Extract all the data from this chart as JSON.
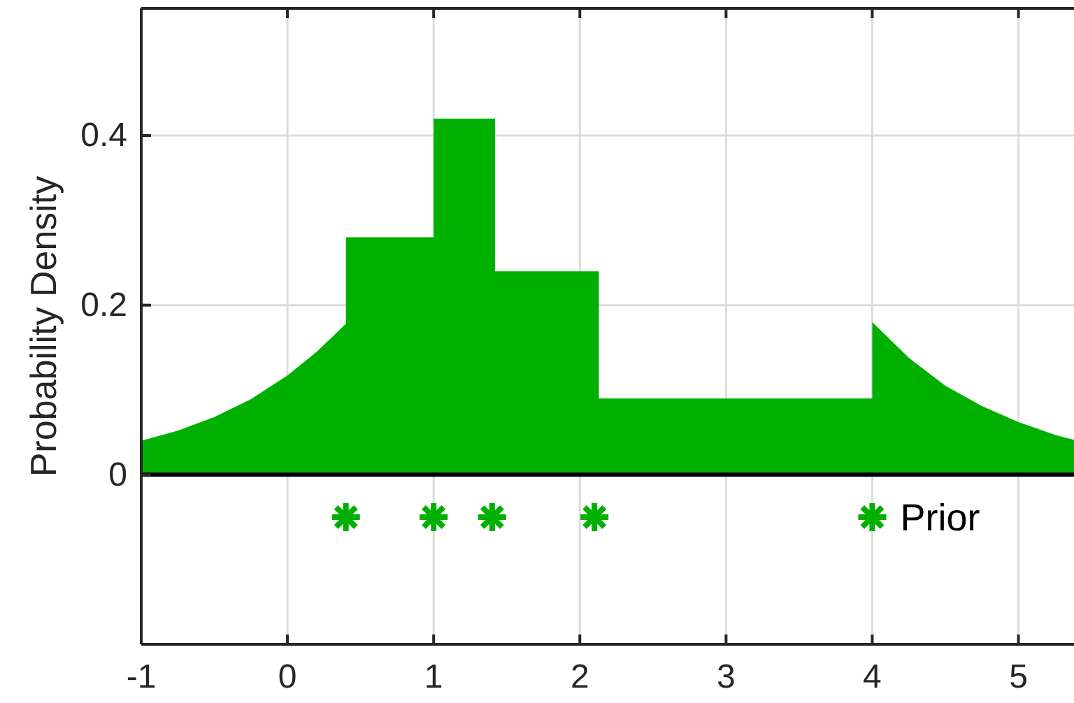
{
  "chart_data": {
    "type": "area",
    "ylabel": "Probability Density",
    "xlim": [
      -1,
      5.38
    ],
    "ylim": [
      -0.2,
      0.55
    ],
    "xticks": [
      -1,
      0,
      1,
      2,
      3,
      4,
      5
    ],
    "yticks": [
      0,
      0.2,
      0.4
    ],
    "grid": true,
    "legend": false,
    "series": [
      {
        "color": "#00b000",
        "x": [
          -1,
          -0.75,
          -0.5,
          -0.25,
          0,
          0.2,
          0.4,
          0.4,
          1.0,
          1.0,
          1.42,
          1.42,
          2.13,
          2.13,
          4.0,
          4.0,
          4.25,
          4.5,
          4.75,
          5.0,
          5.25,
          5.38
        ],
        "values": [
          0.04,
          0.052,
          0.068,
          0.089,
          0.117,
          0.145,
          0.178,
          0.28,
          0.28,
          0.42,
          0.42,
          0.24,
          0.24,
          0.09,
          0.09,
          0.18,
          0.138,
          0.105,
          0.081,
          0.062,
          0.047,
          0.041
        ]
      },
      {
        "type": "scatter",
        "name": "Prior",
        "color": "#00b000",
        "marker": "cross",
        "x": [
          0.4,
          1.0,
          1.4,
          2.1,
          4.0
        ],
        "values": [
          -0.05,
          -0.05,
          -0.05,
          -0.05,
          -0.05
        ]
      }
    ],
    "ref_lines": [
      {
        "axis": "y",
        "value": 0,
        "color": "#000000"
      }
    ]
  }
}
